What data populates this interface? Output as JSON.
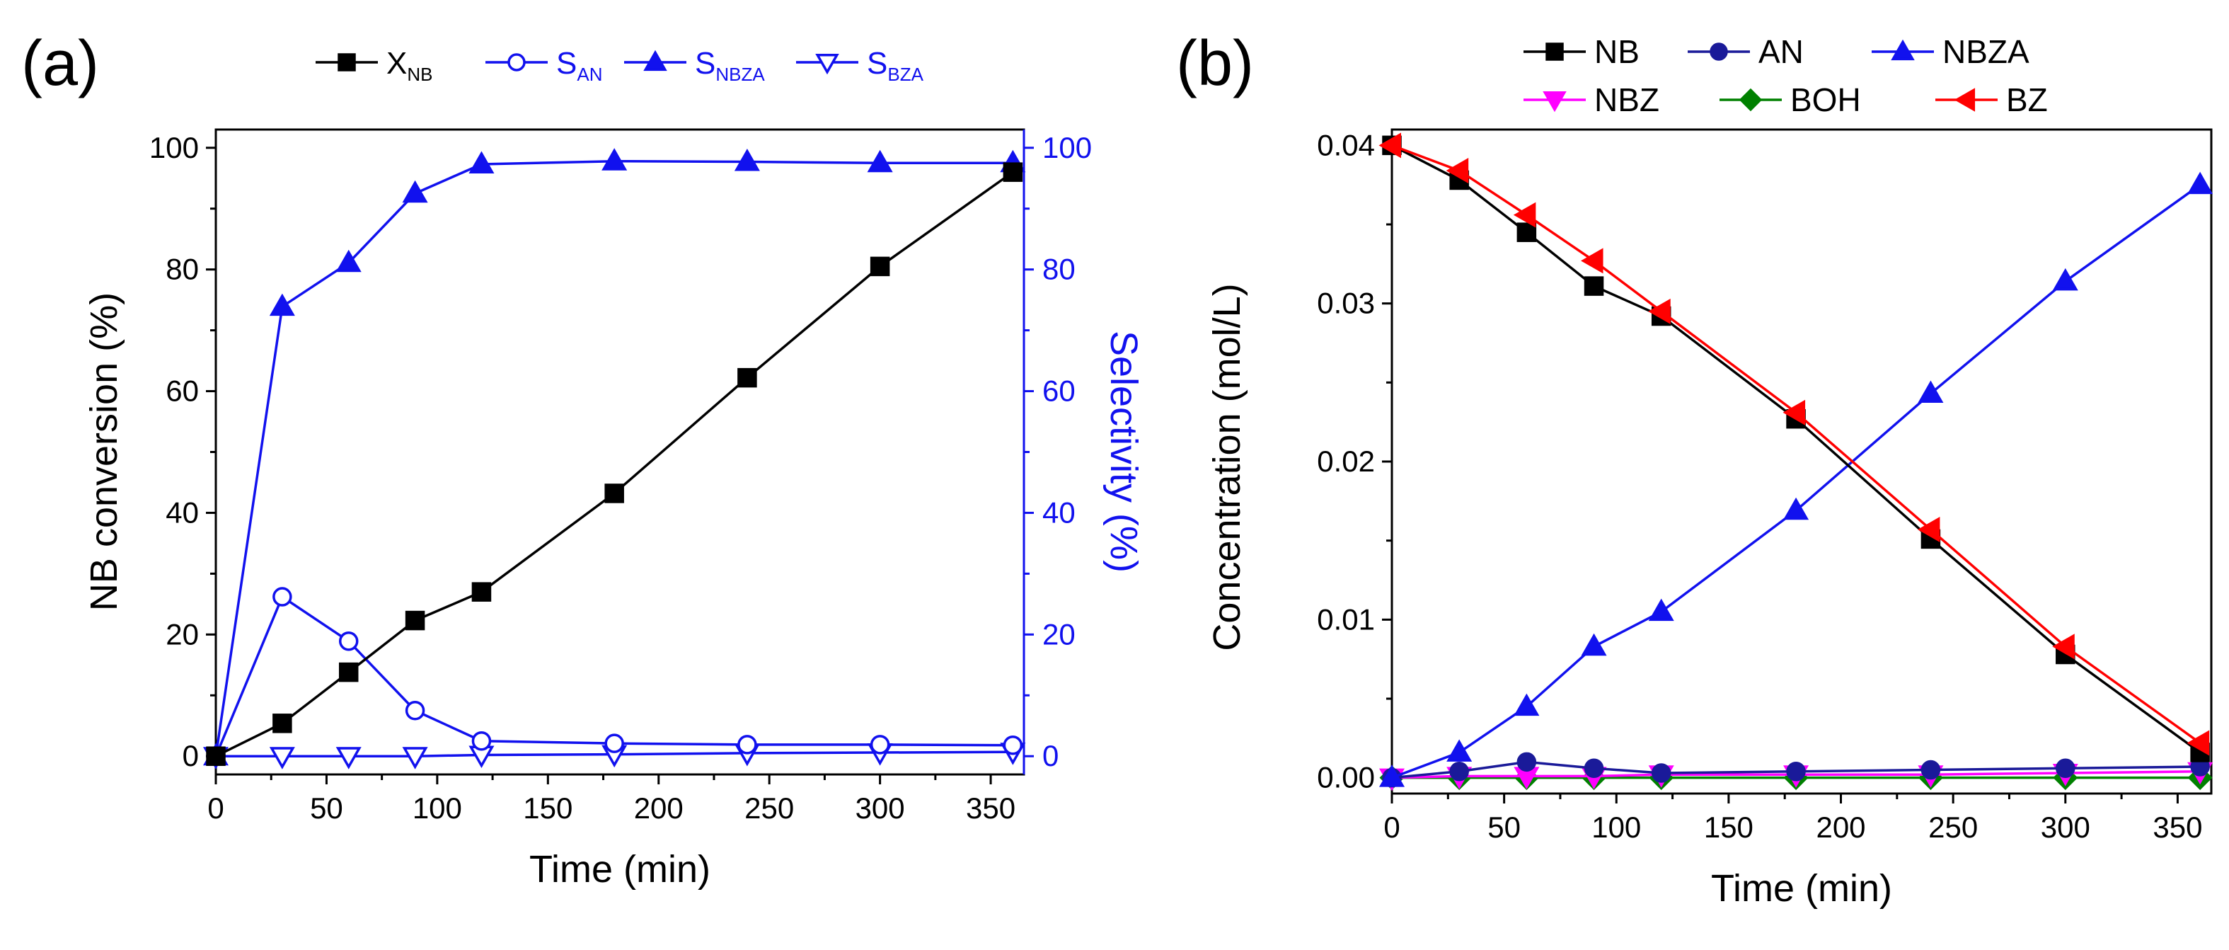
{
  "panels": {
    "a": {
      "letter": "(a)",
      "left_ylabel": "NB conversion (%)",
      "right_ylabel": "Selectivity (%)"
    },
    "b": {
      "letter": "(b)",
      "ylabel": "Concentration (mol/L)"
    }
  },
  "colors": {
    "black": "#000000",
    "blue": "#1111ee",
    "navy": "#1a1a99",
    "magenta": "#ff00ff",
    "green": "#008000",
    "red": "#ff0000"
  },
  "chart_data": [
    {
      "type": "line",
      "panel": "a",
      "xlabel": "Time (min)",
      "ylabel": "NB conversion (%)",
      "y2label": "Selectivity (%)",
      "xlim": [
        0,
        365
      ],
      "ylim": [
        -3,
        103
      ],
      "y2lim": [
        -3,
        103
      ],
      "x_ticks": [
        0,
        50,
        100,
        150,
        200,
        250,
        300,
        350
      ],
      "y_ticks": [
        0,
        20,
        40,
        60,
        80,
        100
      ],
      "y2_ticks": [
        0,
        20,
        40,
        60,
        80,
        100
      ],
      "legend_placement": "top",
      "x": [
        0,
        30,
        60,
        90,
        120,
        180,
        240,
        300,
        360
      ],
      "series": [
        {
          "name": "X",
          "sub": "NB",
          "marker": "square-filled",
          "color": "#000000",
          "axis": "left",
          "values": [
            0,
            5.4,
            13.8,
            22.3,
            27.0,
            43.2,
            62.2,
            80.5,
            96.0
          ]
        },
        {
          "name": "S",
          "sub": "AN",
          "marker": "circle-open",
          "color": "#1111ee",
          "axis": "right",
          "values": [
            0,
            26.2,
            18.9,
            7.5,
            2.5,
            2.1,
            1.9,
            1.9,
            1.8
          ]
        },
        {
          "name": "S",
          "sub": "NBZA",
          "marker": "triangle-up-filled",
          "color": "#1111ee",
          "axis": "right",
          "values": [
            0,
            73.9,
            81.1,
            92.5,
            97.3,
            97.8,
            97.7,
            97.5,
            97.5
          ]
        },
        {
          "name": "S",
          "sub": "BZA",
          "marker": "triangle-down-open",
          "color": "#1111ee",
          "axis": "right",
          "values": [
            0,
            0,
            0,
            0,
            0.2,
            0.3,
            0.5,
            0.6,
            0.7
          ]
        }
      ]
    },
    {
      "type": "line",
      "panel": "b",
      "xlabel": "Time (min)",
      "ylabel": "Concentration (mol/L)",
      "xlim": [
        0,
        365
      ],
      "ylim": [
        -0.001,
        0.041
      ],
      "x_ticks": [
        0,
        50,
        100,
        150,
        200,
        250,
        300,
        350
      ],
      "y_ticks": [
        "0.00",
        "0.01",
        "0.02",
        "0.03",
        "0.04"
      ],
      "legend_placement": "top",
      "x": [
        0,
        30,
        60,
        90,
        120,
        180,
        240,
        300,
        360
      ],
      "series": [
        {
          "name": "NB",
          "marker": "square-filled",
          "color": "#000000",
          "values": [
            0.04,
            0.0378,
            0.0345,
            0.0311,
            0.0292,
            0.0227,
            0.0151,
            0.0078,
            0.0016
          ]
        },
        {
          "name": "AN",
          "marker": "circle-filled",
          "color": "#1a1a99",
          "values": [
            0.0,
            0.0004,
            0.001,
            0.0006,
            0.0003,
            0.0004,
            0.0005,
            0.0006,
            0.0007
          ]
        },
        {
          "name": "NBZA",
          "marker": "triangle-up-filled",
          "color": "#1111ee",
          "values": [
            0.0,
            0.0016,
            0.0045,
            0.0083,
            0.0105,
            0.0169,
            0.0243,
            0.0314,
            0.0375
          ]
        },
        {
          "name": "NBZ",
          "marker": "triangle-down-filled",
          "color": "#ff00ff",
          "values": [
            0.0,
            0.0001,
            0.0001,
            0.0001,
            0.0002,
            0.0002,
            0.0002,
            0.0003,
            0.0004
          ]
        },
        {
          "name": "BOH",
          "marker": "diamond-filled",
          "color": "#008000",
          "values": [
            0.0,
            0.0,
            0.0,
            0.0,
            0.0,
            0.0,
            0.0,
            0.0,
            0.0
          ]
        },
        {
          "name": "BZ",
          "marker": "triangle-left-filled",
          "color": "#ff0000",
          "values": [
            0.04,
            0.0384,
            0.0356,
            0.0327,
            0.0295,
            0.0231,
            0.0157,
            0.0083,
            0.0022
          ]
        }
      ]
    }
  ]
}
